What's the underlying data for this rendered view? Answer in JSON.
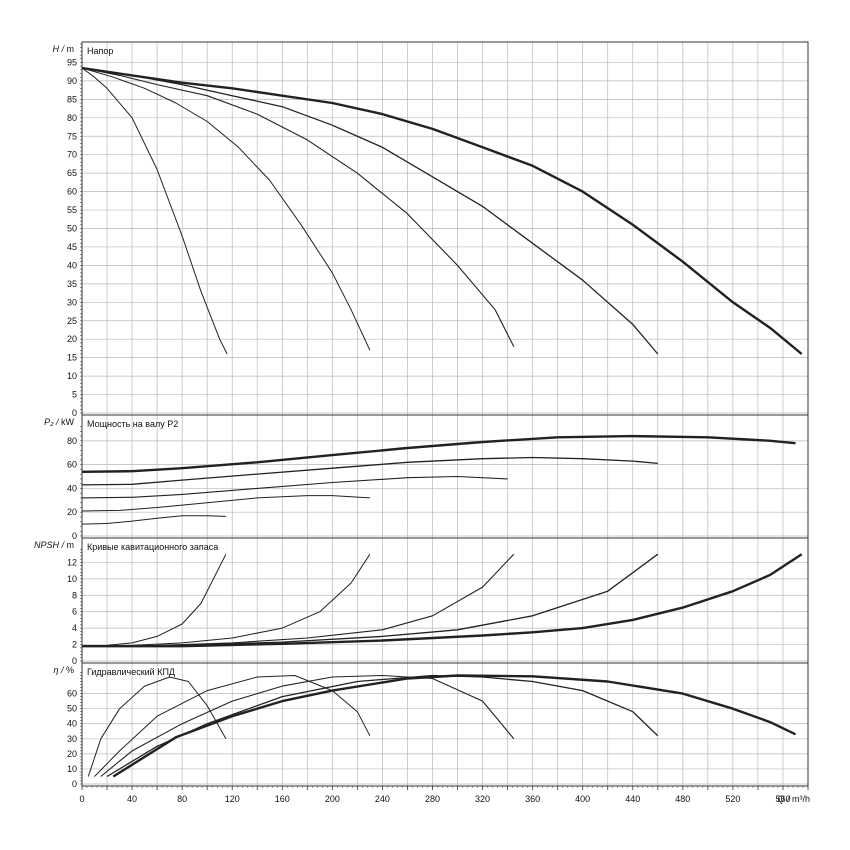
{
  "chart_data": {
    "type": "line",
    "x_axis": {
      "label_q": "Q",
      "label_unit": "m³/h",
      "range": [
        0,
        580
      ],
      "ticks": [
        "0",
        "40",
        "80",
        "120",
        "160",
        "200",
        "240",
        "280",
        "320",
        "360",
        "400",
        "440",
        "480",
        "520",
        "560"
      ]
    },
    "panels": [
      {
        "id": "head",
        "title": "Напор",
        "ylabel_sym": "H",
        "ylabel_unit": "m",
        "ylim": [
          0,
          100
        ],
        "yticks": [
          "0",
          "5",
          "10",
          "15",
          "20",
          "25",
          "30",
          "35",
          "40",
          "45",
          "50",
          "55",
          "60",
          "65",
          "70",
          "75",
          "80",
          "85",
          "90",
          "95"
        ],
        "series": [
          {
            "points": [
              [
                0,
                93.5
              ],
              [
                10,
                91
              ],
              [
                20,
                88
              ],
              [
                40,
                80
              ],
              [
                60,
                66
              ],
              [
                80,
                48
              ],
              [
                95,
                33
              ],
              [
                110,
                20
              ],
              [
                116,
                16
              ]
            ]
          },
          {
            "points": [
              [
                0,
                93.5
              ],
              [
                25,
                91
              ],
              [
                50,
                88
              ],
              [
                75,
                84
              ],
              [
                100,
                79
              ],
              [
                125,
                72
              ],
              [
                150,
                63
              ],
              [
                175,
                51
              ],
              [
                200,
                38
              ],
              [
                215,
                28
              ],
              [
                230,
                17
              ]
            ]
          },
          {
            "points": [
              [
                0,
                93.5
              ],
              [
                30,
                91.5
              ],
              [
                60,
                89
              ],
              [
                100,
                86
              ],
              [
                140,
                81
              ],
              [
                180,
                74
              ],
              [
                220,
                65
              ],
              [
                260,
                54
              ],
              [
                300,
                40
              ],
              [
                330,
                28
              ],
              [
                345,
                18
              ]
            ]
          },
          {
            "points": [
              [
                0,
                93.5
              ],
              [
                40,
                91.5
              ],
              [
                80,
                89
              ],
              [
                120,
                86
              ],
              [
                160,
                83
              ],
              [
                200,
                78
              ],
              [
                240,
                72
              ],
              [
                280,
                64
              ],
              [
                320,
                56
              ],
              [
                360,
                46
              ],
              [
                400,
                36
              ],
              [
                440,
                24
              ],
              [
                460,
                16
              ]
            ]
          },
          {
            "points": [
              [
                0,
                93.5
              ],
              [
                40,
                91.5
              ],
              [
                80,
                89.5
              ],
              [
                120,
                88
              ],
              [
                160,
                86
              ],
              [
                200,
                84
              ],
              [
                240,
                81
              ],
              [
                280,
                77
              ],
              [
                320,
                72
              ],
              [
                360,
                67
              ],
              [
                400,
                60
              ],
              [
                440,
                51
              ],
              [
                480,
                41
              ],
              [
                520,
                30
              ],
              [
                550,
                23
              ],
              [
                575,
                16
              ]
            ]
          }
        ]
      },
      {
        "id": "power",
        "title": "Мощность на валу P2",
        "ylabel_sym": "P₂",
        "ylabel_unit": "kW",
        "ylim": [
          0,
          95
        ],
        "yticks": [
          "0",
          "20",
          "40",
          "60",
          "80"
        ],
        "series": [
          {
            "points": [
              [
                0,
                10
              ],
              [
                20,
                10.5
              ],
              [
                40,
                12.5
              ],
              [
                60,
                15
              ],
              [
                80,
                17
              ],
              [
                100,
                17
              ],
              [
                115,
                16.5
              ]
            ]
          },
          {
            "points": [
              [
                0,
                21
              ],
              [
                30,
                21.5
              ],
              [
                60,
                24
              ],
              [
                100,
                28
              ],
              [
                140,
                32
              ],
              [
                180,
                34
              ],
              [
                200,
                34
              ],
              [
                230,
                32
              ]
            ]
          },
          {
            "points": [
              [
                0,
                32
              ],
              [
                40,
                32.5
              ],
              [
                80,
                35
              ],
              [
                140,
                40
              ],
              [
                200,
                45
              ],
              [
                260,
                49
              ],
              [
                300,
                50
              ],
              [
                340,
                48
              ]
            ]
          },
          {
            "points": [
              [
                0,
                43
              ],
              [
                40,
                43.5
              ],
              [
                80,
                47
              ],
              [
                140,
                52
              ],
              [
                200,
                57
              ],
              [
                260,
                62
              ],
              [
                320,
                65
              ],
              [
                360,
                66
              ],
              [
                400,
                65
              ],
              [
                440,
                63
              ],
              [
                460,
                61
              ]
            ]
          },
          {
            "points": [
              [
                0,
                54
              ],
              [
                40,
                54.5
              ],
              [
                80,
                57
              ],
              [
                140,
                62
              ],
              [
                200,
                68
              ],
              [
                260,
                74
              ],
              [
                320,
                79
              ],
              [
                380,
                83
              ],
              [
                440,
                84
              ],
              [
                500,
                83
              ],
              [
                550,
                80
              ],
              [
                570,
                78
              ]
            ]
          }
        ]
      },
      {
        "id": "npsh",
        "title": "Кривые кавитационного запаса",
        "ylabel_sym": "NPSH",
        "ylabel_unit": "m",
        "ylim": [
          0,
          14
        ],
        "yticks": [
          "0",
          "2",
          "4",
          "6",
          "8",
          "10",
          "12"
        ],
        "series": [
          {
            "points": [
              [
                0,
                1.8
              ],
              [
                20,
                1.9
              ],
              [
                40,
                2.2
              ],
              [
                60,
                3.0
              ],
              [
                80,
                4.5
              ],
              [
                95,
                7
              ],
              [
                105,
                10
              ],
              [
                115,
                13
              ]
            ]
          },
          {
            "points": [
              [
                0,
                1.8
              ],
              [
                40,
                1.9
              ],
              [
                80,
                2.2
              ],
              [
                120,
                2.8
              ],
              [
                160,
                4.0
              ],
              [
                190,
                6
              ],
              [
                215,
                9.5
              ],
              [
                230,
                13
              ]
            ]
          },
          {
            "points": [
              [
                0,
                1.8
              ],
              [
                60,
                1.9
              ],
              [
                120,
                2.2
              ],
              [
                180,
                2.8
              ],
              [
                240,
                3.8
              ],
              [
                280,
                5.5
              ],
              [
                320,
                9
              ],
              [
                345,
                13
              ]
            ]
          },
          {
            "points": [
              [
                0,
                1.8
              ],
              [
                80,
                1.9
              ],
              [
                160,
                2.3
              ],
              [
                240,
                3
              ],
              [
                300,
                3.8
              ],
              [
                360,
                5.5
              ],
              [
                420,
                8.5
              ],
              [
                460,
                13
              ]
            ]
          },
          {
            "points": [
              [
                0,
                1.8
              ],
              [
                80,
                1.8
              ],
              [
                160,
                2.1
              ],
              [
                240,
                2.5
              ],
              [
                320,
                3.1
              ],
              [
                360,
                3.5
              ],
              [
                400,
                4
              ],
              [
                440,
                5
              ],
              [
                480,
                6.5
              ],
              [
                520,
                8.5
              ],
              [
                550,
                10.5
              ],
              [
                575,
                13
              ]
            ]
          }
        ]
      },
      {
        "id": "eff",
        "title": "Гидравлический КПД",
        "ylabel_sym": "η",
        "ylabel_unit": "%",
        "ylim": [
          0,
          75
        ],
        "yticks": [
          "0",
          "10",
          "20",
          "30",
          "40",
          "50",
          "60"
        ],
        "series": [
          {
            "points": [
              [
                5,
                5
              ],
              [
                15,
                30
              ],
              [
                30,
                50
              ],
              [
                50,
                65
              ],
              [
                70,
                71
              ],
              [
                85,
                68
              ],
              [
                100,
                52
              ],
              [
                115,
                30
              ]
            ]
          },
          {
            "points": [
              [
                10,
                5
              ],
              [
                30,
                22
              ],
              [
                60,
                45
              ],
              [
                100,
                62
              ],
              [
                140,
                71
              ],
              [
                170,
                72
              ],
              [
                200,
                62
              ],
              [
                220,
                48
              ],
              [
                230,
                32
              ]
            ]
          },
          {
            "points": [
              [
                15,
                5
              ],
              [
                40,
                22
              ],
              [
                80,
                40
              ],
              [
                120,
                55
              ],
              [
                160,
                65
              ],
              [
                200,
                71
              ],
              [
                240,
                72
              ],
              [
                280,
                70
              ],
              [
                320,
                55
              ],
              [
                345,
                30
              ]
            ]
          },
          {
            "points": [
              [
                20,
                5
              ],
              [
                60,
                25
              ],
              [
                100,
                40
              ],
              [
                160,
                58
              ],
              [
                220,
                68
              ],
              [
                280,
                72
              ],
              [
                320,
                71
              ],
              [
                360,
                68
              ],
              [
                400,
                62
              ],
              [
                440,
                48
              ],
              [
                460,
                32
              ]
            ]
          },
          {
            "points": [
              [
                25,
                5
              ],
              [
                75,
                31
              ],
              [
                120,
                45
              ],
              [
                160,
                55
              ],
              [
                200,
                62
              ],
              [
                260,
                70
              ],
              [
                300,
                72
              ],
              [
                360,
                71.5
              ],
              [
                420,
                68
              ],
              [
                480,
                60
              ],
              [
                520,
                50
              ],
              [
                550,
                41
              ],
              [
                570,
                33
              ]
            ]
          }
        ]
      }
    ]
  }
}
